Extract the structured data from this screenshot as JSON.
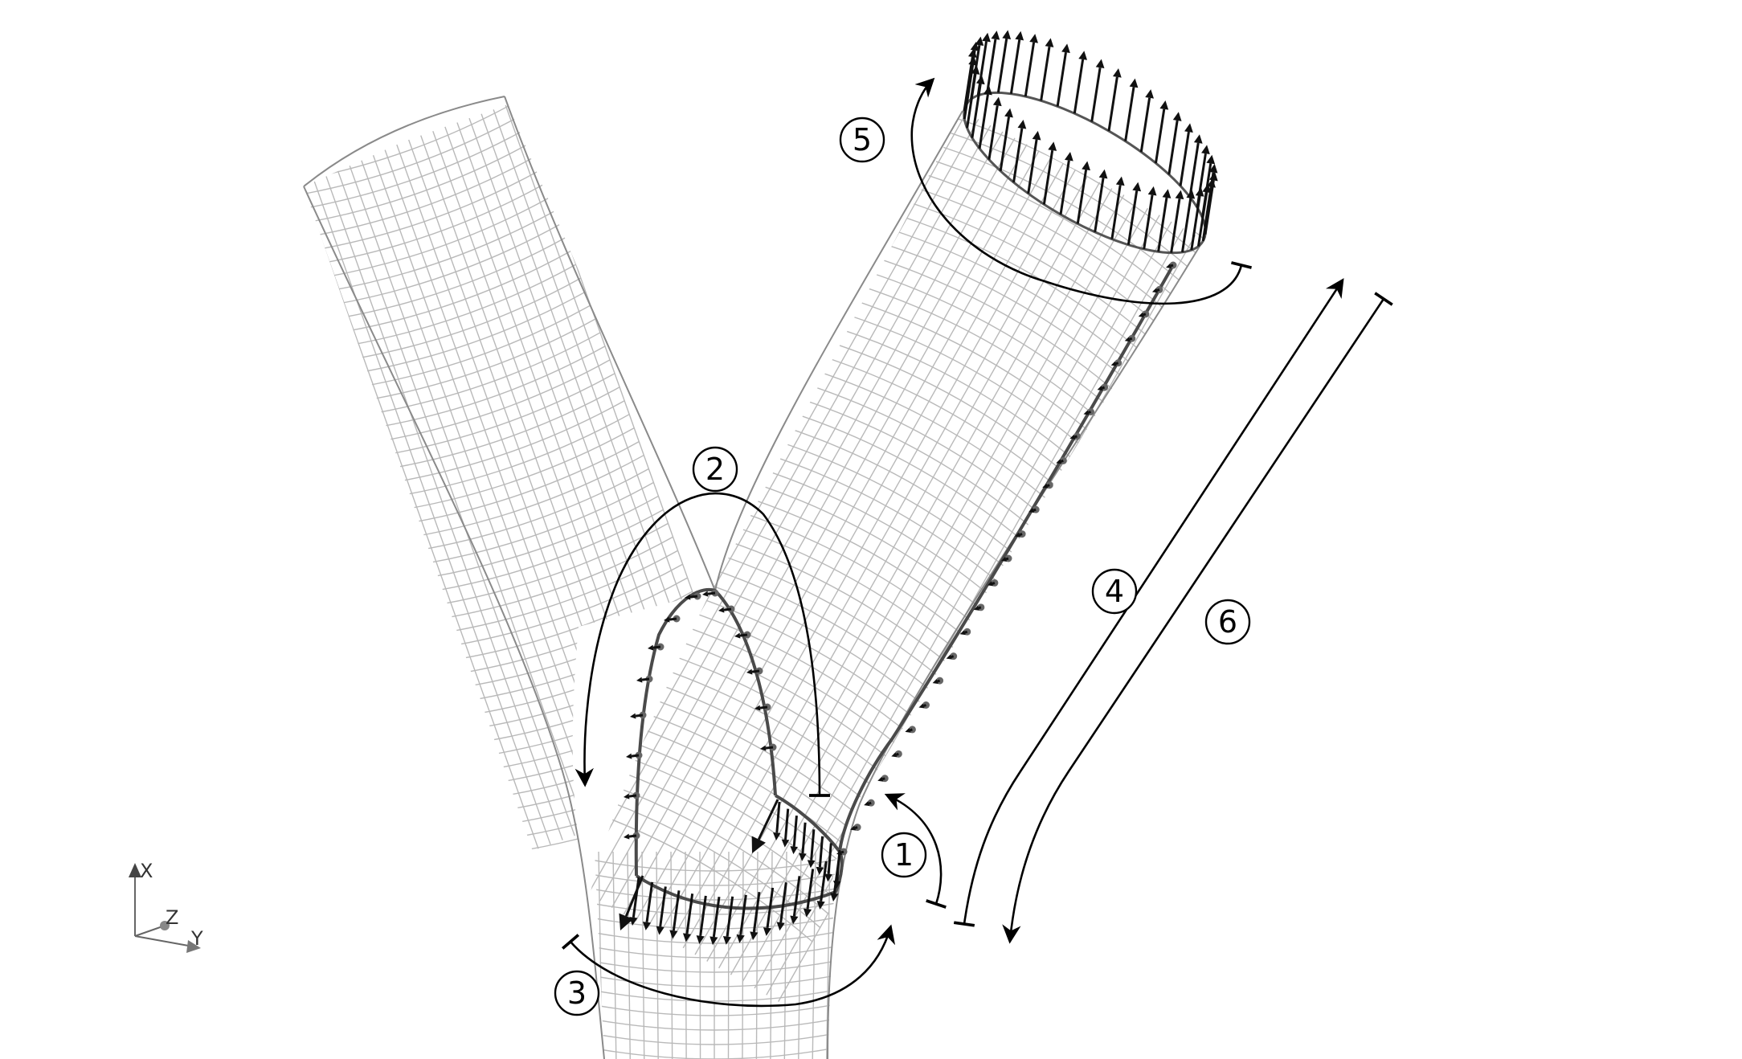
{
  "diagram": {
    "steps": [
      {
        "id": "1",
        "label": "①"
      },
      {
        "id": "2",
        "label": "②"
      },
      {
        "id": "3",
        "label": "③"
      },
      {
        "id": "4",
        "label": "④"
      },
      {
        "id": "5",
        "label": "⑤"
      },
      {
        "id": "6",
        "label": "⑥"
      }
    ],
    "axes": {
      "x": "X",
      "y": "Y",
      "z": "Z"
    }
  }
}
